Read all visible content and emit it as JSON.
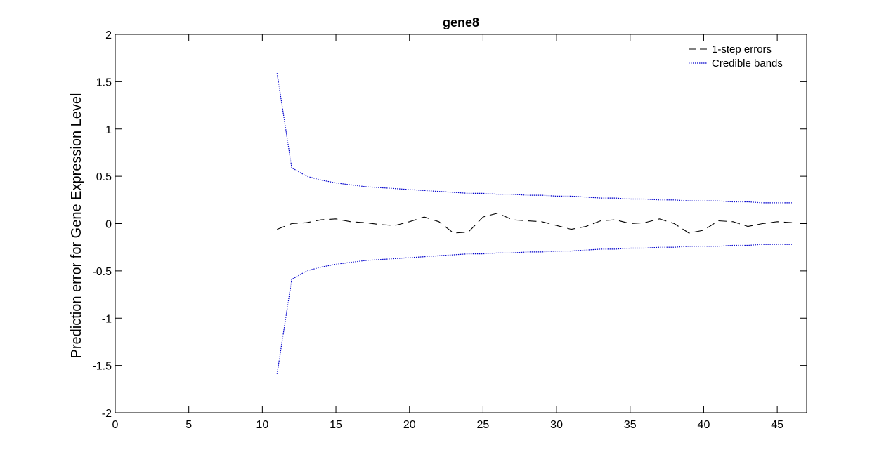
{
  "chart_data": {
    "type": "line",
    "title": "gene8",
    "xlabel": "",
    "ylabel": "Prediction error for Gene Expression Level",
    "xlim": [
      0,
      47
    ],
    "ylim": [
      -2,
      2
    ],
    "xticks": [
      0,
      5,
      10,
      15,
      20,
      25,
      30,
      35,
      40,
      45
    ],
    "yticks": [
      2,
      1.5,
      1,
      0.5,
      0,
      -0.5,
      -1,
      -1.5,
      -2
    ],
    "grid": false,
    "legend_position": "top-right",
    "x": [
      11,
      12,
      13,
      14,
      15,
      16,
      17,
      18,
      19,
      20,
      21,
      22,
      23,
      24,
      25,
      26,
      27,
      28,
      29,
      30,
      31,
      32,
      33,
      34,
      35,
      36,
      37,
      38,
      39,
      40,
      41,
      42,
      43,
      44,
      45,
      46
    ],
    "series": [
      {
        "name": "1-step errors",
        "color": "#000000",
        "style": "dashed",
        "values": [
          -0.06,
          0.0,
          0.01,
          0.04,
          0.05,
          0.02,
          0.01,
          -0.01,
          -0.02,
          0.02,
          0.07,
          0.02,
          -0.1,
          -0.09,
          0.07,
          0.11,
          0.04,
          0.03,
          0.02,
          -0.02,
          -0.06,
          -0.03,
          0.03,
          0.04,
          0.0,
          0.01,
          0.05,
          0.0,
          -0.1,
          -0.07,
          0.03,
          0.02,
          -0.03,
          0.0,
          0.02,
          0.01
        ]
      },
      {
        "name": "Credible bands",
        "color": "#0000cc",
        "style": "dotted",
        "values": [
          1.59,
          0.59,
          0.5,
          0.46,
          0.43,
          0.41,
          0.39,
          0.38,
          0.37,
          0.36,
          0.35,
          0.34,
          0.33,
          0.32,
          0.32,
          0.31,
          0.31,
          0.3,
          0.3,
          0.29,
          0.29,
          0.28,
          0.27,
          0.27,
          0.26,
          0.26,
          0.25,
          0.25,
          0.24,
          0.24,
          0.24,
          0.23,
          0.23,
          0.22,
          0.22,
          0.22
        ]
      },
      {
        "name": "",
        "color": "#0000cc",
        "style": "dotted",
        "values": [
          -1.59,
          -0.59,
          -0.5,
          -0.46,
          -0.43,
          -0.41,
          -0.39,
          -0.38,
          -0.37,
          -0.36,
          -0.35,
          -0.34,
          -0.33,
          -0.32,
          -0.32,
          -0.31,
          -0.31,
          -0.3,
          -0.3,
          -0.29,
          -0.29,
          -0.28,
          -0.27,
          -0.27,
          -0.26,
          -0.26,
          -0.25,
          -0.25,
          -0.24,
          -0.24,
          -0.24,
          -0.23,
          -0.23,
          -0.22,
          -0.22,
          -0.22
        ]
      }
    ]
  }
}
